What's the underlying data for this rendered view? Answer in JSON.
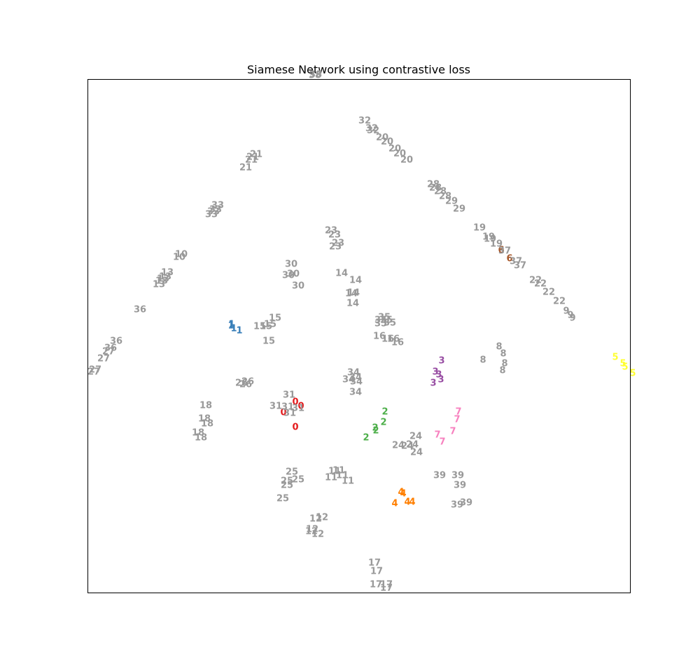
{
  "chart_data": {
    "type": "scatter",
    "title": "Siamese Network using contrastive loss",
    "xlabel": "",
    "ylabel": "",
    "xlim": [
      0,
      1000
    ],
    "ylim": [
      952,
      0
    ],
    "grid": false,
    "legend": "none",
    "marker": "text label (class id)",
    "colors": {
      "0": "#e41a1c",
      "1": "#377eb8",
      "2": "#4daf4a",
      "3": "#984ea3",
      "4": "#ff7f00",
      "5": "#ffff33",
      "6": "#a65628",
      "7": "#f781bf",
      "other": "#999999"
    },
    "points": [
      {
        "label": "0",
        "x": 422,
        "y": 341
      },
      {
        "label": "0",
        "x": 405,
        "y": 362
      },
      {
        "label": "0",
        "x": 430,
        "y": 371
      },
      {
        "label": "0",
        "x": 422,
        "y": 377
      },
      {
        "label": "1",
        "x": 342,
        "y": 479
      },
      {
        "label": "1",
        "x": 334,
        "y": 482
      },
      {
        "label": "1",
        "x": 330,
        "y": 486
      },
      {
        "label": "1",
        "x": 331,
        "y": 488
      },
      {
        "label": "2",
        "x": 523,
        "y": 326
      },
      {
        "label": "2",
        "x": 537,
        "y": 336
      },
      {
        "label": "2",
        "x": 536,
        "y": 340
      },
      {
        "label": "2",
        "x": 548,
        "y": 348
      },
      {
        "label": "2",
        "x": 550,
        "y": 363
      },
      {
        "label": "3",
        "x": 619,
        "y": 404
      },
      {
        "label": "3",
        "x": 630,
        "y": 409
      },
      {
        "label": "3",
        "x": 627,
        "y": 416
      },
      {
        "label": "3",
        "x": 622,
        "y": 420
      },
      {
        "label": "3",
        "x": 631,
        "y": 436
      },
      {
        "label": "4",
        "x": 564,
        "y": 232
      },
      {
        "label": "4",
        "x": 582,
        "y": 234
      },
      {
        "label": "4",
        "x": 589,
        "y": 234
      },
      {
        "label": "4",
        "x": 576,
        "y": 246
      },
      {
        "label": "4",
        "x": 573,
        "y": 248
      },
      {
        "label": "5",
        "x": 904,
        "y": 418
      },
      {
        "label": "5",
        "x": 893,
        "y": 427
      },
      {
        "label": "5",
        "x": 890,
        "y": 432
      },
      {
        "label": "5",
        "x": 879,
        "y": 441
      },
      {
        "label": "6",
        "x": 728,
        "y": 582
      },
      {
        "label": "6",
        "x": 716,
        "y": 594
      },
      {
        "label": "7",
        "x": 632,
        "y": 320
      },
      {
        "label": "7",
        "x": 625,
        "y": 330
      },
      {
        "label": "7",
        "x": 647,
        "y": 335
      },
      {
        "label": "7",
        "x": 653,
        "y": 352
      },
      {
        "label": "7",
        "x": 655,
        "y": 363
      },
      {
        "label": "8",
        "x": 718,
        "y": 422
      },
      {
        "label": "8",
        "x": 721,
        "y": 432
      },
      {
        "label": "8",
        "x": 690,
        "y": 437
      },
      {
        "label": "8",
        "x": 719,
        "y": 446
      },
      {
        "label": "8",
        "x": 713,
        "y": 456
      },
      {
        "label": "9",
        "x": 818,
        "y": 497
      },
      {
        "label": "9",
        "x": 815,
        "y": 501
      },
      {
        "label": "9",
        "x": 809,
        "y": 507
      },
      {
        "label": "10",
        "x": 256,
        "y": 584
      },
      {
        "label": "10",
        "x": 259,
        "y": 588
      },
      {
        "label": "11",
        "x": 473,
        "y": 269
      },
      {
        "label": "11",
        "x": 497,
        "y": 264
      },
      {
        "label": "11",
        "x": 489,
        "y": 272
      },
      {
        "label": "11",
        "x": 478,
        "y": 278
      },
      {
        "label": "11",
        "x": 484,
        "y": 279
      },
      {
        "label": "12",
        "x": 454,
        "y": 188
      },
      {
        "label": "12",
        "x": 445,
        "y": 192
      },
      {
        "label": "12",
        "x": 446,
        "y": 195
      },
      {
        "label": "12",
        "x": 451,
        "y": 210
      },
      {
        "label": "12",
        "x": 460,
        "y": 212
      },
      {
        "label": "13",
        "x": 227,
        "y": 545
      },
      {
        "label": "13",
        "x": 231,
        "y": 550
      },
      {
        "label": "13",
        "x": 233,
        "y": 553
      },
      {
        "label": "13",
        "x": 236,
        "y": 556
      },
      {
        "label": "13",
        "x": 239,
        "y": 562
      },
      {
        "label": "14",
        "x": 504,
        "y": 518
      },
      {
        "label": "14",
        "x": 502,
        "y": 532
      },
      {
        "label": "14",
        "x": 505,
        "y": 533
      },
      {
        "label": "14",
        "x": 508,
        "y": 551
      },
      {
        "label": "14",
        "x": 488,
        "y": 561
      },
      {
        "label": "15",
        "x": 384,
        "y": 464
      },
      {
        "label": "15",
        "x": 371,
        "y": 485
      },
      {
        "label": "15",
        "x": 380,
        "y": 485
      },
      {
        "label": "15",
        "x": 386,
        "y": 488
      },
      {
        "label": "15",
        "x": 393,
        "y": 497
      },
      {
        "label": "16",
        "x": 568,
        "y": 462
      },
      {
        "label": "16",
        "x": 554,
        "y": 467
      },
      {
        "label": "16",
        "x": 562,
        "y": 467
      },
      {
        "label": "16",
        "x": 542,
        "y": 471
      },
      {
        "label": "17",
        "x": 552,
        "y": 111
      },
      {
        "label": "17",
        "x": 537,
        "y": 116
      },
      {
        "label": "17",
        "x": 552,
        "y": 116
      },
      {
        "label": "17",
        "x": 538,
        "y": 135
      },
      {
        "label": "17",
        "x": 535,
        "y": 147
      },
      {
        "label": "18",
        "x": 287,
        "y": 326
      },
      {
        "label": "18",
        "x": 283,
        "y": 333
      },
      {
        "label": "18",
        "x": 296,
        "y": 346
      },
      {
        "label": "18",
        "x": 292,
        "y": 353
      },
      {
        "label": "18",
        "x": 294,
        "y": 372
      },
      {
        "label": "19",
        "x": 709,
        "y": 603
      },
      {
        "label": "19",
        "x": 700,
        "y": 610
      },
      {
        "label": "19",
        "x": 698,
        "y": 613
      },
      {
        "label": "19",
        "x": 685,
        "y": 626
      },
      {
        "label": "20",
        "x": 581,
        "y": 723
      },
      {
        "label": "20",
        "x": 571,
        "y": 732
      },
      {
        "label": "20",
        "x": 564,
        "y": 739
      },
      {
        "label": "20",
        "x": 553,
        "y": 749
      },
      {
        "label": "20",
        "x": 546,
        "y": 755
      },
      {
        "label": "21",
        "x": 351,
        "y": 712
      },
      {
        "label": "21",
        "x": 359,
        "y": 723
      },
      {
        "label": "21",
        "x": 361,
        "y": 727
      },
      {
        "label": "21",
        "x": 366,
        "y": 731
      },
      {
        "label": "22",
        "x": 799,
        "y": 521
      },
      {
        "label": "22",
        "x": 784,
        "y": 534
      },
      {
        "label": "22",
        "x": 772,
        "y": 546
      },
      {
        "label": "22",
        "x": 765,
        "y": 551
      },
      {
        "label": "23",
        "x": 479,
        "y": 599
      },
      {
        "label": "23",
        "x": 483,
        "y": 604
      },
      {
        "label": "23",
        "x": 478,
        "y": 616
      },
      {
        "label": "23",
        "x": 473,
        "y": 622
      },
      {
        "label": "24",
        "x": 595,
        "y": 305
      },
      {
        "label": "24",
        "x": 569,
        "y": 315
      },
      {
        "label": "24",
        "x": 582,
        "y": 314
      },
      {
        "label": "24",
        "x": 589,
        "y": 316
      },
      {
        "label": "24",
        "x": 594,
        "y": 328
      },
      {
        "label": "25",
        "x": 404,
        "y": 239
      },
      {
        "label": "25",
        "x": 410,
        "y": 258
      },
      {
        "label": "25",
        "x": 410,
        "y": 264
      },
      {
        "label": "25",
        "x": 426,
        "y": 266
      },
      {
        "label": "25",
        "x": 417,
        "y": 277
      },
      {
        "label": "26",
        "x": 351,
        "y": 402
      },
      {
        "label": "26",
        "x": 345,
        "y": 404
      },
      {
        "label": "26",
        "x": 354,
        "y": 406
      },
      {
        "label": "27",
        "x": 134,
        "y": 420
      },
      {
        "label": "27",
        "x": 136,
        "y": 423
      },
      {
        "label": "27",
        "x": 148,
        "y": 439
      },
      {
        "label": "27",
        "x": 155,
        "y": 449
      },
      {
        "label": "28",
        "x": 636,
        "y": 671
      },
      {
        "label": "28",
        "x": 629,
        "y": 678
      },
      {
        "label": "28",
        "x": 622,
        "y": 683
      },
      {
        "label": "28",
        "x": 619,
        "y": 688
      },
      {
        "label": "29",
        "x": 656,
        "y": 653
      },
      {
        "label": "29",
        "x": 645,
        "y": 664
      },
      {
        "label": "30",
        "x": 426,
        "y": 543
      },
      {
        "label": "30",
        "x": 412,
        "y": 558
      },
      {
        "label": "30",
        "x": 419,
        "y": 560
      },
      {
        "label": "30",
        "x": 416,
        "y": 574
      },
      {
        "label": "31",
        "x": 414,
        "y": 361
      },
      {
        "label": "31",
        "x": 394,
        "y": 371
      },
      {
        "label": "31",
        "x": 411,
        "y": 370
      },
      {
        "label": "31",
        "x": 426,
        "y": 368
      },
      {
        "label": "31",
        "x": 413,
        "y": 387
      },
      {
        "label": "32",
        "x": 533,
        "y": 765
      },
      {
        "label": "32",
        "x": 531,
        "y": 768
      },
      {
        "label": "32",
        "x": 521,
        "y": 779
      },
      {
        "label": "33",
        "x": 302,
        "y": 645
      },
      {
        "label": "33",
        "x": 305,
        "y": 649
      },
      {
        "label": "33",
        "x": 308,
        "y": 652
      },
      {
        "label": "33",
        "x": 311,
        "y": 658
      },
      {
        "label": "34",
        "x": 508,
        "y": 391
      },
      {
        "label": "34",
        "x": 509,
        "y": 406
      },
      {
        "label": "34",
        "x": 498,
        "y": 409
      },
      {
        "label": "34",
        "x": 508,
        "y": 412
      },
      {
        "label": "34",
        "x": 505,
        "y": 419
      },
      {
        "label": "35",
        "x": 544,
        "y": 489
      },
      {
        "label": "35",
        "x": 557,
        "y": 490
      },
      {
        "label": "35",
        "x": 544,
        "y": 494
      },
      {
        "label": "35",
        "x": 552,
        "y": 494
      },
      {
        "label": "35",
        "x": 549,
        "y": 498
      },
      {
        "label": "36",
        "x": 158,
        "y": 454
      },
      {
        "label": "36",
        "x": 166,
        "y": 464
      },
      {
        "label": "36",
        "x": 200,
        "y": 509
      },
      {
        "label": "37",
        "x": 743,
        "y": 572
      },
      {
        "label": "37",
        "x": 737,
        "y": 578
      },
      {
        "label": "37",
        "x": 721,
        "y": 593
      },
      {
        "label": "38",
        "x": 450,
        "y": 844
      },
      {
        "label": "38",
        "x": 451,
        "y": 845
      },
      {
        "label": "39",
        "x": 653,
        "y": 230
      },
      {
        "label": "39",
        "x": 666,
        "y": 233
      },
      {
        "label": "39",
        "x": 657,
        "y": 258
      },
      {
        "label": "39",
        "x": 628,
        "y": 272
      },
      {
        "label": "39",
        "x": 654,
        "y": 272
      }
    ]
  }
}
